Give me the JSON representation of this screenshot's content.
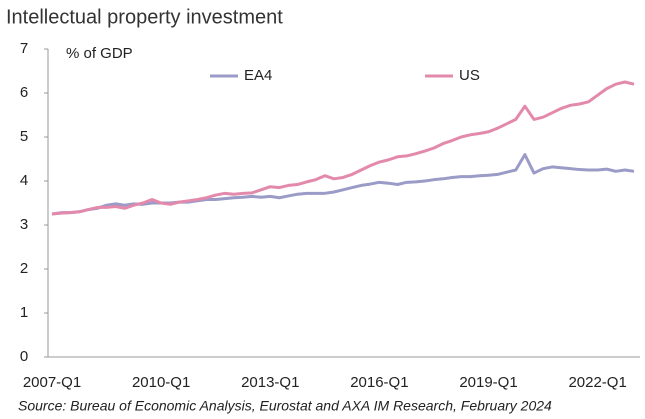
{
  "chart_data": {
    "type": "line",
    "title": "Intellectual property investment",
    "y_label": "% of GDP",
    "source": "Source: Bureau of Economic Analysis, Eurostat and AXA IM Research, February 2024",
    "categories": [
      "2007-Q1",
      null,
      null,
      null,
      null,
      null,
      null,
      null,
      null,
      null,
      null,
      null,
      "2010-Q1",
      null,
      null,
      null,
      null,
      null,
      null,
      null,
      null,
      null,
      null,
      null,
      "2013-Q1",
      null,
      null,
      null,
      null,
      null,
      null,
      null,
      null,
      null,
      null,
      null,
      "2016-Q1",
      null,
      null,
      null,
      null,
      null,
      null,
      null,
      null,
      null,
      null,
      null,
      "2019-Q1",
      null,
      null,
      null,
      null,
      null,
      null,
      null,
      null,
      null,
      null,
      null,
      "2022-Q1",
      null,
      null,
      null,
      null
    ],
    "series": [
      {
        "name": "EA4",
        "color": "#9b9bc8",
        "values": [
          3.25,
          3.28,
          3.28,
          3.3,
          3.35,
          3.38,
          3.45,
          3.48,
          3.45,
          3.48,
          3.47,
          3.5,
          3.5,
          3.5,
          3.52,
          3.52,
          3.55,
          3.58,
          3.58,
          3.6,
          3.62,
          3.63,
          3.65,
          3.63,
          3.65,
          3.62,
          3.66,
          3.7,
          3.72,
          3.72,
          3.72,
          3.75,
          3.8,
          3.85,
          3.9,
          3.93,
          3.97,
          3.95,
          3.92,
          3.97,
          3.98,
          4.0,
          4.03,
          4.05,
          4.08,
          4.1,
          4.1,
          4.12,
          4.13,
          4.15,
          4.2,
          4.25,
          4.6,
          4.18,
          4.28,
          4.32,
          4.3,
          4.28,
          4.26,
          4.25,
          4.25,
          4.27,
          4.22,
          4.25,
          4.22
        ]
      },
      {
        "name": "US",
        "color": "#e389ab",
        "values": [
          3.25,
          3.27,
          3.28,
          3.3,
          3.35,
          3.4,
          3.4,
          3.42,
          3.38,
          3.45,
          3.5,
          3.58,
          3.5,
          3.47,
          3.52,
          3.55,
          3.58,
          3.62,
          3.68,
          3.72,
          3.7,
          3.72,
          3.73,
          3.8,
          3.87,
          3.85,
          3.9,
          3.92,
          3.98,
          4.03,
          4.12,
          4.05,
          4.08,
          4.15,
          4.25,
          4.35,
          4.43,
          4.48,
          4.55,
          4.57,
          4.62,
          4.68,
          4.75,
          4.85,
          4.92,
          5.0,
          5.05,
          5.08,
          5.12,
          5.2,
          5.3,
          5.4,
          5.7,
          5.4,
          5.45,
          5.55,
          5.65,
          5.72,
          5.75,
          5.8,
          5.95,
          6.1,
          6.2,
          6.25,
          6.2
        ]
      }
    ],
    "ylim": [
      0,
      7
    ],
    "yticks": [
      0,
      1,
      2,
      3,
      4,
      5,
      6,
      7
    ],
    "grid": false,
    "legend": "top"
  }
}
